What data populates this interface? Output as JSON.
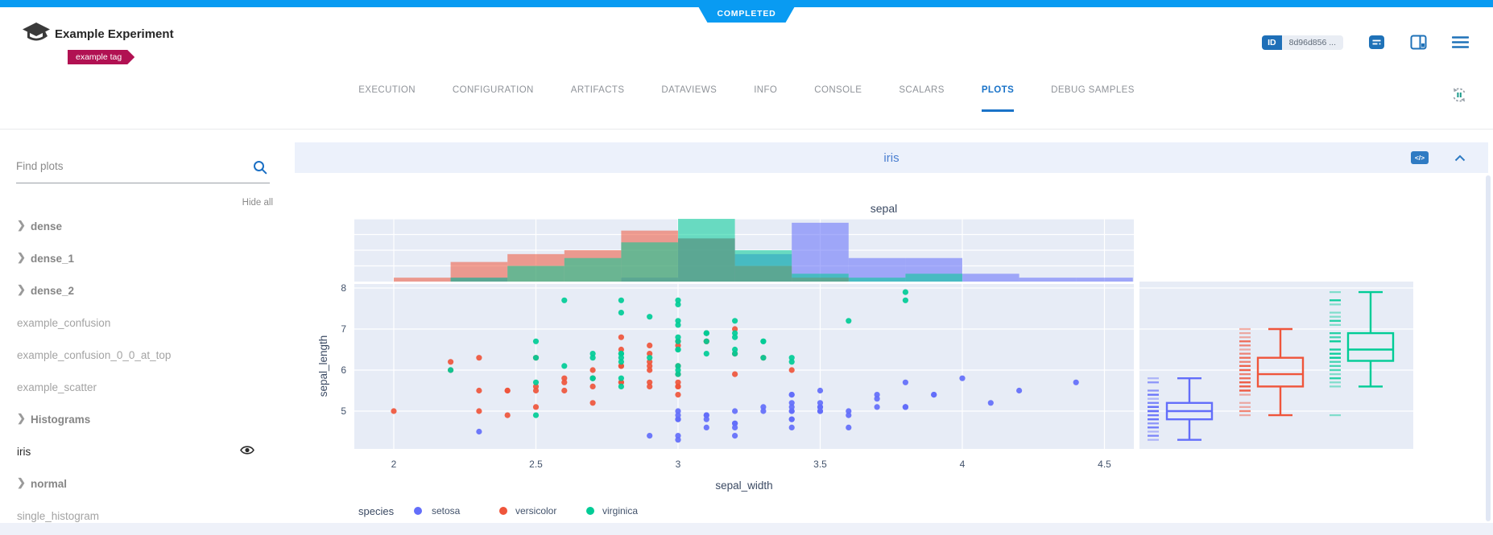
{
  "status_banner": {
    "label": "COMPLETED",
    "color": "#099bf2"
  },
  "header": {
    "app_icon": "clearml-logo-icon",
    "title": "Example Experiment",
    "tag": "example tag",
    "tag_color": "#b11152",
    "id_chip": {
      "label": "ID",
      "value": "8d96d856 ..."
    },
    "icon_names": [
      "comment-icon",
      "split-view-icon",
      "menu-icon"
    ]
  },
  "tab_bar": {
    "accent": "#1a73c8",
    "refresh_icon": "auto-refresh-pause-icon",
    "tabs": [
      {
        "label": "EXECUTION"
      },
      {
        "label": "CONFIGURATION"
      },
      {
        "label": "ARTIFACTS"
      },
      {
        "label": "DATAVIEWS"
      },
      {
        "label": "INFO"
      },
      {
        "label": "CONSOLE"
      },
      {
        "label": "SCALARS"
      },
      {
        "label": "PLOTS",
        "active": true
      },
      {
        "label": "DEBUG SAMPLES"
      }
    ]
  },
  "sidebar": {
    "search_placeholder": "Find plots",
    "search_icon": "search-icon",
    "hide_all_label": "Hide all",
    "items": [
      {
        "label": "dense",
        "group": true
      },
      {
        "label": "dense_1",
        "group": true
      },
      {
        "label": "dense_2",
        "group": true
      },
      {
        "label": "example_confusion"
      },
      {
        "label": "example_confusion_0_0_at_top"
      },
      {
        "label": "example_scatter"
      },
      {
        "label": "Histograms",
        "group": true
      },
      {
        "label": "iris",
        "active": true,
        "eye": true
      },
      {
        "label": "normal",
        "group": true
      },
      {
        "label": "single_histogram"
      }
    ]
  },
  "plot_panel": {
    "title": "iris",
    "code_icon_label": "</>",
    "collapse_icon": "chevron-up-icon"
  },
  "chart_data": {
    "type": "scatter",
    "title": "sepal",
    "xlabel": "sepal_width",
    "ylabel": "sepal_length",
    "xlim": [
      1.86,
      4.6
    ],
    "ylim": [
      4.08,
      8.1
    ],
    "xticks": [
      2,
      2.5,
      3,
      3.5,
      4,
      4.5
    ],
    "yticks": [
      5,
      6,
      7,
      8
    ],
    "grid": true,
    "plot_bg": "#e7ecf6",
    "grid_color": "#ffffff",
    "legend_title": "species",
    "legend_position": "bottom-left",
    "series": [
      {
        "name": "setosa",
        "color": "#636efa",
        "points": [
          [
            3.5,
            5.1
          ],
          [
            3.0,
            4.9
          ],
          [
            3.2,
            4.7
          ],
          [
            3.1,
            4.6
          ],
          [
            3.6,
            5.0
          ],
          [
            3.9,
            5.4
          ],
          [
            3.4,
            4.6
          ],
          [
            3.4,
            5.0
          ],
          [
            2.9,
            4.4
          ],
          [
            3.1,
            4.9
          ],
          [
            3.7,
            5.4
          ],
          [
            3.4,
            4.8
          ],
          [
            3.0,
            4.8
          ],
          [
            3.0,
            4.3
          ],
          [
            4.0,
            5.8
          ],
          [
            4.4,
            5.7
          ],
          [
            3.9,
            5.4
          ],
          [
            3.5,
            5.1
          ],
          [
            3.8,
            5.7
          ],
          [
            3.8,
            5.1
          ],
          [
            3.4,
            5.4
          ],
          [
            3.7,
            5.1
          ],
          [
            3.6,
            4.6
          ],
          [
            3.3,
            5.1
          ],
          [
            3.4,
            4.8
          ],
          [
            3.0,
            5.0
          ],
          [
            3.4,
            5.0
          ],
          [
            3.5,
            5.2
          ],
          [
            3.4,
            5.2
          ],
          [
            3.2,
            4.7
          ],
          [
            3.1,
            4.8
          ],
          [
            3.4,
            5.4
          ],
          [
            4.1,
            5.2
          ],
          [
            4.2,
            5.5
          ],
          [
            3.1,
            4.9
          ],
          [
            3.2,
            5.0
          ],
          [
            3.5,
            5.5
          ],
          [
            3.6,
            4.9
          ],
          [
            3.0,
            4.4
          ],
          [
            3.4,
            5.1
          ],
          [
            3.5,
            5.0
          ],
          [
            2.3,
            4.5
          ],
          [
            3.2,
            4.4
          ],
          [
            3.5,
            5.0
          ],
          [
            3.8,
            5.1
          ],
          [
            3.0,
            4.8
          ],
          [
            3.8,
            5.1
          ],
          [
            3.2,
            4.6
          ],
          [
            3.7,
            5.3
          ],
          [
            3.3,
            5.0
          ]
        ]
      },
      {
        "name": "versicolor",
        "color": "#ef553b",
        "points": [
          [
            3.2,
            7.0
          ],
          [
            3.2,
            6.4
          ],
          [
            3.1,
            6.9
          ],
          [
            2.3,
            5.5
          ],
          [
            2.8,
            6.5
          ],
          [
            2.8,
            5.7
          ],
          [
            3.3,
            6.3
          ],
          [
            2.4,
            4.9
          ],
          [
            2.9,
            6.6
          ],
          [
            2.7,
            5.2
          ],
          [
            2.0,
            5.0
          ],
          [
            3.0,
            5.9
          ],
          [
            2.2,
            6.0
          ],
          [
            2.9,
            6.1
          ],
          [
            2.9,
            5.6
          ],
          [
            3.1,
            6.7
          ],
          [
            3.0,
            5.6
          ],
          [
            2.7,
            5.8
          ],
          [
            2.2,
            6.2
          ],
          [
            2.5,
            5.6
          ],
          [
            3.2,
            5.9
          ],
          [
            2.8,
            6.1
          ],
          [
            2.5,
            6.3
          ],
          [
            2.8,
            6.1
          ],
          [
            2.9,
            6.4
          ],
          [
            3.0,
            6.6
          ],
          [
            2.8,
            6.8
          ],
          [
            3.0,
            6.7
          ],
          [
            2.9,
            6.0
          ],
          [
            2.6,
            5.7
          ],
          [
            2.4,
            5.5
          ],
          [
            2.4,
            5.5
          ],
          [
            2.7,
            5.8
          ],
          [
            2.7,
            6.0
          ],
          [
            3.0,
            5.4
          ],
          [
            3.4,
            6.0
          ],
          [
            3.1,
            6.7
          ],
          [
            2.3,
            6.3
          ],
          [
            3.0,
            5.6
          ],
          [
            2.5,
            5.5
          ],
          [
            2.6,
            5.5
          ],
          [
            3.0,
            6.1
          ],
          [
            2.6,
            5.8
          ],
          [
            2.3,
            5.0
          ],
          [
            2.7,
            5.6
          ],
          [
            3.0,
            5.7
          ],
          [
            2.9,
            5.7
          ],
          [
            2.9,
            6.2
          ],
          [
            2.5,
            5.1
          ],
          [
            2.8,
            5.7
          ]
        ]
      },
      {
        "name": "virginica",
        "color": "#00cc96",
        "points": [
          [
            3.3,
            6.3
          ],
          [
            2.7,
            5.8
          ],
          [
            3.0,
            7.1
          ],
          [
            2.9,
            6.3
          ],
          [
            3.0,
            6.5
          ],
          [
            3.0,
            7.6
          ],
          [
            2.5,
            4.9
          ],
          [
            2.9,
            7.3
          ],
          [
            2.5,
            6.7
          ],
          [
            3.6,
            7.2
          ],
          [
            3.2,
            6.5
          ],
          [
            2.7,
            6.4
          ],
          [
            3.0,
            6.8
          ],
          [
            2.5,
            5.7
          ],
          [
            2.8,
            5.8
          ],
          [
            3.2,
            6.4
          ],
          [
            3.0,
            6.5
          ],
          [
            3.8,
            7.7
          ],
          [
            2.6,
            7.7
          ],
          [
            2.2,
            6.0
          ],
          [
            3.2,
            6.9
          ],
          [
            2.8,
            5.6
          ],
          [
            2.8,
            7.7
          ],
          [
            2.7,
            6.3
          ],
          [
            3.3,
            6.7
          ],
          [
            3.2,
            7.2
          ],
          [
            2.8,
            6.2
          ],
          [
            3.0,
            6.1
          ],
          [
            2.8,
            6.4
          ],
          [
            3.0,
            7.2
          ],
          [
            2.8,
            7.4
          ],
          [
            3.8,
            7.9
          ],
          [
            2.8,
            6.4
          ],
          [
            2.8,
            6.3
          ],
          [
            2.6,
            6.1
          ],
          [
            3.0,
            7.7
          ],
          [
            3.4,
            6.3
          ],
          [
            3.1,
            6.4
          ],
          [
            3.0,
            6.0
          ],
          [
            3.1,
            6.9
          ],
          [
            3.1,
            6.7
          ],
          [
            3.1,
            6.9
          ],
          [
            2.7,
            5.8
          ],
          [
            3.2,
            6.8
          ],
          [
            3.3,
            6.7
          ],
          [
            3.0,
            6.7
          ],
          [
            2.5,
            6.3
          ],
          [
            3.0,
            6.5
          ],
          [
            3.4,
            6.2
          ],
          [
            3.0,
            5.9
          ]
        ]
      }
    ],
    "marginal_x_histogram": {
      "bin_width": 0.2,
      "max_count": 16,
      "grid_counts": [
        4,
        8,
        12,
        16
      ],
      "bins": {
        "setosa": [
          [
            2.2,
            1
          ],
          [
            2.8,
            1
          ],
          [
            3.0,
            11
          ],
          [
            3.2,
            7
          ],
          [
            3.4,
            15
          ],
          [
            3.6,
            6
          ],
          [
            3.8,
            6
          ],
          [
            4.0,
            2
          ],
          [
            4.2,
            1
          ],
          [
            4.4,
            1
          ]
        ],
        "versicolor": [
          [
            2.0,
            1
          ],
          [
            2.2,
            5
          ],
          [
            2.4,
            7
          ],
          [
            2.6,
            8
          ],
          [
            2.8,
            13
          ],
          [
            3.0,
            11
          ],
          [
            3.2,
            4
          ],
          [
            3.4,
            1
          ]
        ],
        "virginica": [
          [
            2.2,
            1
          ],
          [
            2.4,
            4
          ],
          [
            2.6,
            6
          ],
          [
            2.8,
            10
          ],
          [
            3.0,
            16
          ],
          [
            3.2,
            8
          ],
          [
            3.4,
            2
          ],
          [
            3.6,
            1
          ],
          [
            3.8,
            2
          ]
        ]
      }
    },
    "marginal_y_box": {
      "setosa": {
        "whisker_low": 4.3,
        "q1": 4.8,
        "median": 5.0,
        "q3": 5.2,
        "whisker_high": 5.8,
        "outliers": []
      },
      "versicolor": {
        "whisker_low": 4.9,
        "q1": 5.6,
        "median": 5.9,
        "q3": 6.3,
        "whisker_high": 7.0,
        "outliers": []
      },
      "virginica": {
        "whisker_low": 5.6,
        "q1": 6.225,
        "median": 6.5,
        "q3": 6.9,
        "whisker_high": 7.9,
        "outliers": [
          4.9
        ]
      }
    }
  }
}
